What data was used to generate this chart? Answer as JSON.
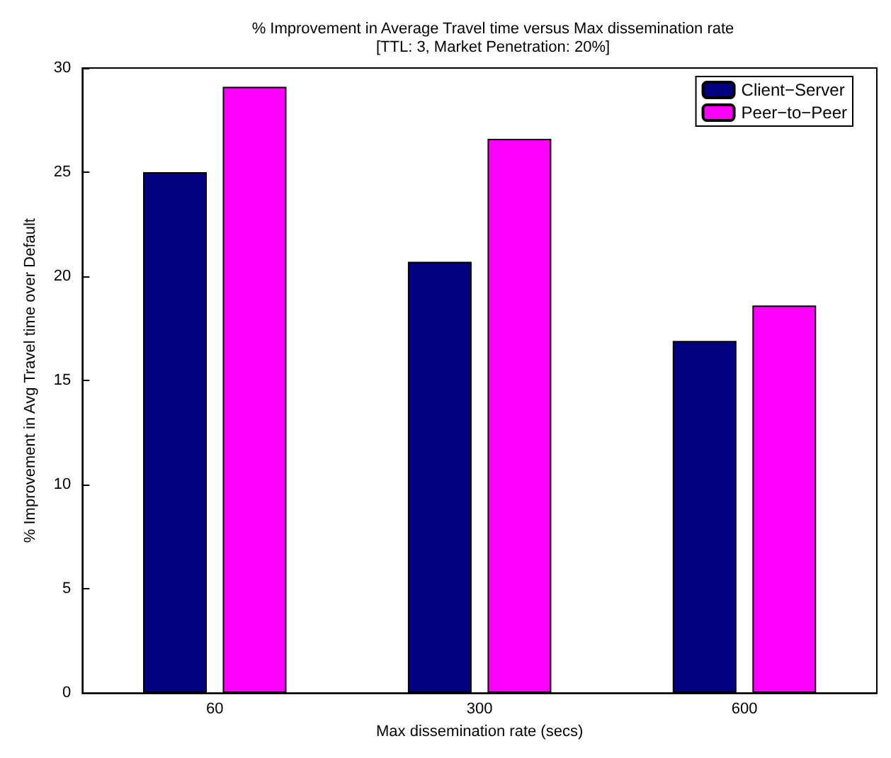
{
  "chart_data": {
    "type": "bar",
    "title": "% Improvement in Average Travel time versus Max dissemination rate",
    "subtitle": "[TTL: 3, Market Penetration: 20%]",
    "xlabel": "Max dissemination rate (secs)",
    "ylabel": "% Improvement in Avg Travel time over Default",
    "categories": [
      "60",
      "300",
      "600"
    ],
    "series": [
      {
        "name": "Client−Server",
        "color": "#000080",
        "values": [
          25.0,
          20.7,
          16.9
        ]
      },
      {
        "name": "Peer−to−Peer",
        "color": "#ff00ff",
        "values": [
          29.1,
          26.6,
          18.6
        ]
      }
    ],
    "ylim": [
      0,
      30
    ],
    "yticks": [
      0,
      5,
      10,
      15,
      20,
      25,
      30
    ],
    "grid": false,
    "legend": "top right"
  }
}
